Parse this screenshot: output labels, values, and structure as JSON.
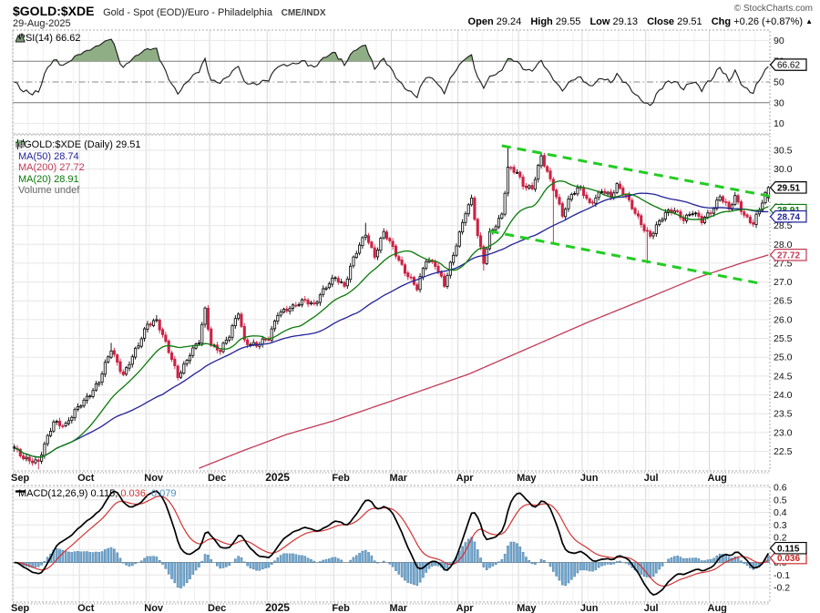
{
  "header": {
    "symbol": "$GOLD:$XDE",
    "description": "Gold - Spot (EOD)/Euro - Philadelphia",
    "exchange": "CME/INDX",
    "date": "29-Aug-2025",
    "copyright": "© StockCharts.com",
    "quote": {
      "open_label": "Open",
      "open": "29.24",
      "high_label": "High",
      "high": "29.55",
      "low_label": "Low",
      "low": "29.13",
      "close_label": "Close",
      "close": "29.51",
      "chg_label": "Chg",
      "chg": "+0.26 (+0.87%)",
      "chg_arrow": "▲"
    }
  },
  "legends": {
    "rsi": {
      "label": "RSI(14) 66.62"
    },
    "main": {
      "title": "$GOLD:$XDE (Daily) 29.51",
      "ma50": "MA(50) 28.74",
      "ma200": "MA(200) 27.72",
      "ma20": "MA(20) 28.91",
      "volume": "Volume undef"
    },
    "macd": {
      "label": "MACD(12,26,9)",
      "v1": "0.115,",
      "v2": "0.036,",
      "v3": "0.079"
    }
  },
  "colors": {
    "candle_down": "#cc2244",
    "candle_up_stroke": "#000000",
    "ma20": "#0a7a0a",
    "ma50": "#22229a",
    "ma200": "#c23a56",
    "trendline": "#22cc22",
    "rsi_line": "#1a1a1a",
    "rsi_fill": "#8fae85",
    "macd_line": "#000000",
    "macd_signal": "#d23333",
    "macd_hist": "#74a9d1",
    "macd_hist_stroke": "#4a7fa8",
    "grid_month": "#d8d8d8",
    "grid_week": "#f0f0f0",
    "grid_h": "#e6e6e6",
    "band_line": "#777777",
    "mid_line": "#888888",
    "border": "#aaaaaa"
  },
  "chart_data": [
    {
      "type": "line",
      "name": "rsi",
      "title": "RSI(14)",
      "last": 66.62,
      "ylim": [
        0,
        100
      ],
      "yticks": [
        90,
        70,
        50,
        30,
        10
      ],
      "bands": {
        "overbought": 70,
        "mid": 50,
        "oversold": 30
      },
      "source": "computed-from-price-closes",
      "window": 14
    },
    {
      "type": "candlestick",
      "name": "price",
      "title": "$GOLD:$XDE Daily",
      "days": 250,
      "ylim": [
        21.98,
        30.91
      ],
      "yticks": [
        30.5,
        30.0,
        29.5,
        29.0,
        28.5,
        28.0,
        27.5,
        27.0,
        26.5,
        26.0,
        25.5,
        25.0,
        24.5,
        24.0,
        23.5,
        23.0,
        22.5
      ],
      "last_candle": {
        "o": 29.24,
        "h": 29.55,
        "l": 29.13,
        "c": 29.51
      },
      "close_anchors": [
        [
          0,
          22.55
        ],
        [
          3,
          22.35
        ],
        [
          8,
          22.2
        ],
        [
          13,
          23.3
        ],
        [
          17,
          23.2
        ],
        [
          22,
          23.75
        ],
        [
          28,
          24.35
        ],
        [
          32,
          25.2
        ],
        [
          36,
          24.55
        ],
        [
          41,
          25.3
        ],
        [
          44,
          25.9
        ],
        [
          47,
          26.0
        ],
        [
          50,
          25.35
        ],
        [
          54,
          24.5
        ],
        [
          58,
          25.1
        ],
        [
          61,
          25.4
        ],
        [
          63,
          26.25
        ],
        [
          65,
          25.35
        ],
        [
          68,
          25.2
        ],
        [
          71,
          25.55
        ],
        [
          74,
          26.2
        ],
        [
          76,
          25.45
        ],
        [
          80,
          25.3
        ],
        [
          84,
          25.5
        ],
        [
          87,
          26.2
        ],
        [
          92,
          26.3
        ],
        [
          96,
          26.55
        ],
        [
          99,
          26.4
        ],
        [
          103,
          26.85
        ],
        [
          106,
          27.15
        ],
        [
          109,
          26.9
        ],
        [
          112,
          27.6
        ],
        [
          116,
          28.3
        ],
        [
          119,
          27.7
        ],
        [
          122,
          28.3
        ],
        [
          125,
          27.9
        ],
        [
          129,
          27.3
        ],
        [
          133,
          26.8
        ],
        [
          136,
          27.6
        ],
        [
          139,
          27.5
        ],
        [
          142,
          26.9
        ],
        [
          145,
          27.7
        ],
        [
          147,
          28.3
        ],
        [
          149,
          28.9
        ],
        [
          151,
          29.2
        ],
        [
          153,
          28.2
        ],
        [
          155,
          27.5
        ],
        [
          157,
          28.3
        ],
        [
          161,
          28.8
        ],
        [
          163,
          30.0
        ],
        [
          166,
          29.9
        ],
        [
          168,
          29.6
        ],
        [
          171,
          29.5
        ],
        [
          174,
          30.3
        ],
        [
          176,
          29.9
        ],
        [
          179,
          29.3
        ],
        [
          181,
          28.8
        ],
        [
          184,
          29.3
        ],
        [
          187,
          29.5
        ],
        [
          190,
          29.1
        ],
        [
          194,
          29.4
        ],
        [
          197,
          29.25
        ],
        [
          199,
          29.6
        ],
        [
          202,
          29.3
        ],
        [
          205,
          28.8
        ],
        [
          208,
          28.4
        ],
        [
          210,
          28.25
        ],
        [
          212,
          28.5
        ],
        [
          215,
          28.8
        ],
        [
          218,
          28.9
        ],
        [
          221,
          28.7
        ],
        [
          224,
          28.85
        ],
        [
          227,
          28.6
        ],
        [
          231,
          29.0
        ],
        [
          233,
          29.3
        ],
        [
          236,
          28.9
        ],
        [
          238,
          29.25
        ],
        [
          241,
          28.8
        ],
        [
          244,
          28.55
        ],
        [
          246,
          28.9
        ],
        [
          249,
          29.51
        ]
      ],
      "wick_events": [
        {
          "d": 8,
          "l": 22.02
        },
        {
          "d": 32,
          "h": 25.38
        },
        {
          "d": 47,
          "h": 26.12
        },
        {
          "d": 116,
          "h": 28.57
        },
        {
          "d": 151,
          "h": 29.3
        },
        {
          "d": 155,
          "l": 27.3
        },
        {
          "d": 163,
          "h": 30.57
        },
        {
          "d": 174,
          "h": 30.45
        },
        {
          "d": 178,
          "l": 28.05
        },
        {
          "d": 209,
          "l": 27.49
        }
      ],
      "ma": {
        "ma20_window": 20,
        "ma50_window": 50,
        "ma200_anchors": [
          [
            61,
            22.05
          ],
          [
            75,
            22.5
          ],
          [
            90,
            22.95
          ],
          [
            105,
            23.3
          ],
          [
            125,
            23.85
          ],
          [
            150,
            24.55
          ],
          [
            170,
            25.25
          ],
          [
            190,
            25.95
          ],
          [
            210,
            26.6
          ],
          [
            225,
            27.1
          ],
          [
            240,
            27.5
          ],
          [
            249,
            27.72
          ]
        ]
      },
      "trendlines": [
        {
          "d1": 161,
          "p1": 30.62,
          "d2": 250,
          "p2": 29.28
        },
        {
          "d1": 157,
          "p1": 28.35,
          "d2": 247,
          "p2": 26.95
        }
      ],
      "months": [
        {
          "label": "Sep",
          "day": 0,
          "bold": false
        },
        {
          "label": "Oct",
          "day": 22,
          "bold": false
        },
        {
          "label": "Nov",
          "day": 44,
          "bold": false
        },
        {
          "label": "Dec",
          "day": 65,
          "bold": false
        },
        {
          "label": "2025",
          "day": 84,
          "bold": true
        },
        {
          "label": "Feb",
          "day": 106,
          "bold": false
        },
        {
          "label": "Mar",
          "day": 125,
          "bold": false
        },
        {
          "label": "Apr",
          "day": 147,
          "bold": false
        },
        {
          "label": "May",
          "day": 167,
          "bold": false
        },
        {
          "label": "Jun",
          "day": 188,
          "bold": false
        },
        {
          "label": "Jul",
          "day": 209,
          "bold": false
        },
        {
          "label": "Aug",
          "day": 230,
          "bold": false
        }
      ]
    },
    {
      "type": "macd",
      "name": "macd",
      "params": [
        12,
        26,
        9
      ],
      "values": [
        0.115,
        0.036,
        0.079
      ],
      "ylim": [
        -0.316,
        0.615
      ],
      "yticks": [
        0.6,
        0.5,
        0.4,
        0.3,
        0.2,
        0.1,
        0.0,
        -0.1,
        -0.2
      ],
      "source": "computed-from-price-closes"
    }
  ],
  "axis_labels": [
    {
      "panel": "rsi",
      "text": "66.62",
      "value": 66.62,
      "color": "#000000",
      "bold": false
    },
    {
      "panel": "price",
      "text": "28.91",
      "value": 28.91,
      "color": "#0a7a0a",
      "bold": true
    },
    {
      "panel": "price",
      "text": "28.74",
      "value": 28.74,
      "color": "#22229a",
      "bold": true
    },
    {
      "panel": "price",
      "text": "27.72",
      "value": 27.72,
      "color": "#c23a56",
      "bold": true
    },
    {
      "panel": "price",
      "text": "29.51",
      "value": 29.51,
      "color": "#000000",
      "bold": true
    },
    {
      "panel": "macd",
      "text": "0.036",
      "value": 0.036,
      "color": "#cc2222",
      "bold": true
    },
    {
      "panel": "macd",
      "text": "0.115",
      "value": 0.115,
      "color": "#000000",
      "bold": true
    }
  ]
}
